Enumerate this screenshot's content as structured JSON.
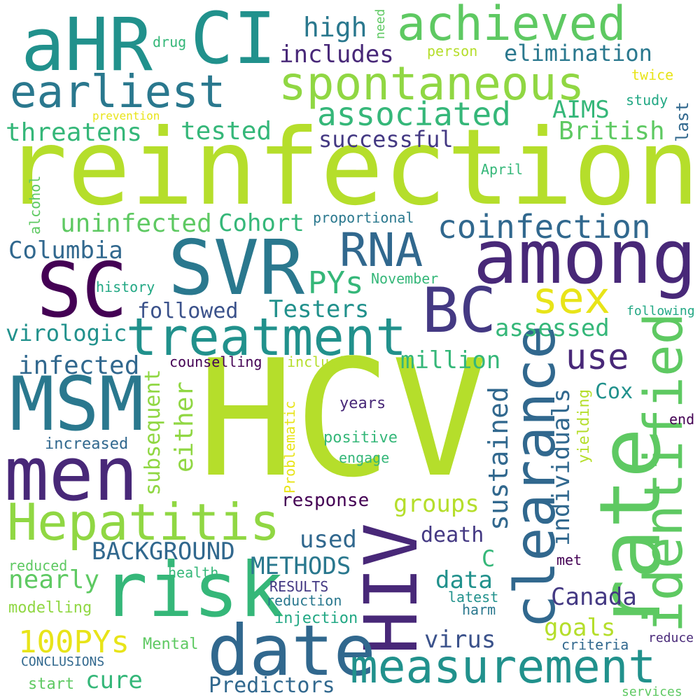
{
  "palette": {
    "dark_purple": "#440154",
    "indigo": "#482878",
    "violet": "#443983",
    "slate_blue": "#3b528b",
    "steel_blue": "#31688e",
    "teal_blue": "#2a788e",
    "teal": "#21918c",
    "sea_green": "#22a884",
    "green": "#35b779",
    "light_green": "#5ec962",
    "lime": "#90d743",
    "bright_lime": "#b5de2b",
    "yellow": "#e8e419"
  },
  "words": [
    {
      "text": "HCV",
      "color": "#b5de2b"
    },
    {
      "text": "reinfection",
      "color": "#b5de2b"
    },
    {
      "text": "rate",
      "color": "#5ec962"
    },
    {
      "text": "HIV",
      "color": "#482878"
    },
    {
      "text": "SVR",
      "color": "#2a788e"
    },
    {
      "text": "among",
      "color": "#482878"
    },
    {
      "text": "risk",
      "color": "#35b779"
    },
    {
      "text": "MSM",
      "color": "#2a788e"
    },
    {
      "text": "men",
      "color": "#482878"
    },
    {
      "text": "date",
      "color": "#31688e"
    },
    {
      "text": "SC",
      "color": "#440154"
    },
    {
      "text": "BC",
      "color": "#443983"
    },
    {
      "text": "CI",
      "color": "#21918c"
    },
    {
      "text": "aHR",
      "color": "#21918c"
    },
    {
      "text": "clearance",
      "color": "#31688e"
    },
    {
      "text": "identified",
      "color": "#5ec962"
    },
    {
      "text": "treatment",
      "color": "#21918c"
    },
    {
      "text": "Hepatitis",
      "color": "#90d743"
    },
    {
      "text": "measurement",
      "color": "#21918c"
    },
    {
      "text": "spontaneous",
      "color": "#90d743"
    },
    {
      "text": "achieved",
      "color": "#5ec962"
    },
    {
      "text": "earliest",
      "color": "#2a788e"
    },
    {
      "text": "RNA",
      "color": "#31688e"
    },
    {
      "text": "sex",
      "color": "#e8e419"
    },
    {
      "text": "associated",
      "color": "#35b779"
    },
    {
      "text": "coinfection",
      "color": "#31688e"
    },
    {
      "text": "sustained",
      "color": "#31688e"
    },
    {
      "text": "use",
      "color": "#482878"
    },
    {
      "text": "PYs",
      "color": "#35b779"
    },
    {
      "text": "high",
      "color": "#2a788e"
    },
    {
      "text": "includes",
      "color": "#482878"
    },
    {
      "text": "elimination",
      "color": "#2a788e"
    },
    {
      "text": "threatens",
      "color": "#35b779"
    },
    {
      "text": "tested",
      "color": "#35b779"
    },
    {
      "text": "AIMS",
      "color": "#35b779"
    },
    {
      "text": "British",
      "color": "#5ec962"
    },
    {
      "text": "successful",
      "color": "#443983"
    },
    {
      "text": "uninfected",
      "color": "#5ec962"
    },
    {
      "text": "Cohort",
      "color": "#35b779"
    },
    {
      "text": "Columbia",
      "color": "#31688e"
    },
    {
      "text": "Testers",
      "color": "#21918c"
    },
    {
      "text": "assessed",
      "color": "#35b779"
    },
    {
      "text": "followed",
      "color": "#3b528b"
    },
    {
      "text": "virologic",
      "color": "#21918c"
    },
    {
      "text": "infected",
      "color": "#31688e"
    },
    {
      "text": "million",
      "color": "#35b779"
    },
    {
      "text": "individuals",
      "color": "#31688e"
    },
    {
      "text": "subsequent",
      "color": "#90d743"
    },
    {
      "text": "either",
      "color": "#90d743"
    },
    {
      "text": "Cox",
      "color": "#21918c"
    },
    {
      "text": "groups",
      "color": "#b5de2b"
    },
    {
      "text": "response",
      "color": "#440154"
    },
    {
      "text": "BACKGROUND",
      "color": "#31688e"
    },
    {
      "text": "METHODS",
      "color": "#2a788e"
    },
    {
      "text": "used",
      "color": "#31688e"
    },
    {
      "text": "nearly",
      "color": "#5ec962"
    },
    {
      "text": "death",
      "color": "#443983"
    },
    {
      "text": "C",
      "color": "#35b779"
    },
    {
      "text": "data",
      "color": "#21918c"
    },
    {
      "text": "Canada",
      "color": "#443983"
    },
    {
      "text": "100PYs",
      "color": "#e8e419"
    },
    {
      "text": "virus",
      "color": "#3b528b"
    },
    {
      "text": "goals",
      "color": "#b5de2b"
    },
    {
      "text": "cure",
      "color": "#35b779"
    },
    {
      "text": "Predictors",
      "color": "#31688e"
    },
    {
      "text": "Problematic",
      "color": "#e8e419"
    },
    {
      "text": "yielding",
      "color": "#b5de2b"
    },
    {
      "text": "positive",
      "color": "#35b779"
    },
    {
      "text": "engage",
      "color": "#35b779"
    },
    {
      "text": "years",
      "color": "#482878"
    },
    {
      "text": "increased",
      "color": "#31688e"
    },
    {
      "text": "end",
      "color": "#440154"
    },
    {
      "text": "counselling",
      "color": "#440154"
    },
    {
      "text": "inclusion",
      "color": "#b5de2b"
    },
    {
      "text": "drug",
      "color": "#35b779"
    },
    {
      "text": "need",
      "color": "#5ec962"
    },
    {
      "text": "person",
      "color": "#b5de2b"
    },
    {
      "text": "twice",
      "color": "#e8e419"
    },
    {
      "text": "study",
      "color": "#22a884"
    },
    {
      "text": "last",
      "color": "#31688e"
    },
    {
      "text": "prevention",
      "color": "#e8e419"
    },
    {
      "text": "alcohol",
      "color": "#5ec962"
    },
    {
      "text": "April",
      "color": "#35b779"
    },
    {
      "text": "proportional",
      "color": "#2a788e"
    },
    {
      "text": "November",
      "color": "#35b779"
    },
    {
      "text": "history",
      "color": "#22a884"
    },
    {
      "text": "following",
      "color": "#22a884"
    },
    {
      "text": "reduced",
      "color": "#5ec962"
    },
    {
      "text": "health",
      "color": "#35b779"
    },
    {
      "text": "RESULTS",
      "color": "#443983"
    },
    {
      "text": "reduction",
      "color": "#2a788e"
    },
    {
      "text": "latest",
      "color": "#21918c"
    },
    {
      "text": "harm",
      "color": "#2a788e"
    },
    {
      "text": "met",
      "color": "#440154"
    },
    {
      "text": "modelling",
      "color": "#90d743"
    },
    {
      "text": "injection",
      "color": "#22a884"
    },
    {
      "text": "Mental",
      "color": "#5ec962"
    },
    {
      "text": "criteria",
      "color": "#31688e"
    },
    {
      "text": "reduce",
      "color": "#482878"
    },
    {
      "text": "CONCLUSIONS",
      "color": "#31688e"
    },
    {
      "text": "start",
      "color": "#5ec962"
    },
    {
      "text": "services",
      "color": "#5ec962"
    }
  ]
}
